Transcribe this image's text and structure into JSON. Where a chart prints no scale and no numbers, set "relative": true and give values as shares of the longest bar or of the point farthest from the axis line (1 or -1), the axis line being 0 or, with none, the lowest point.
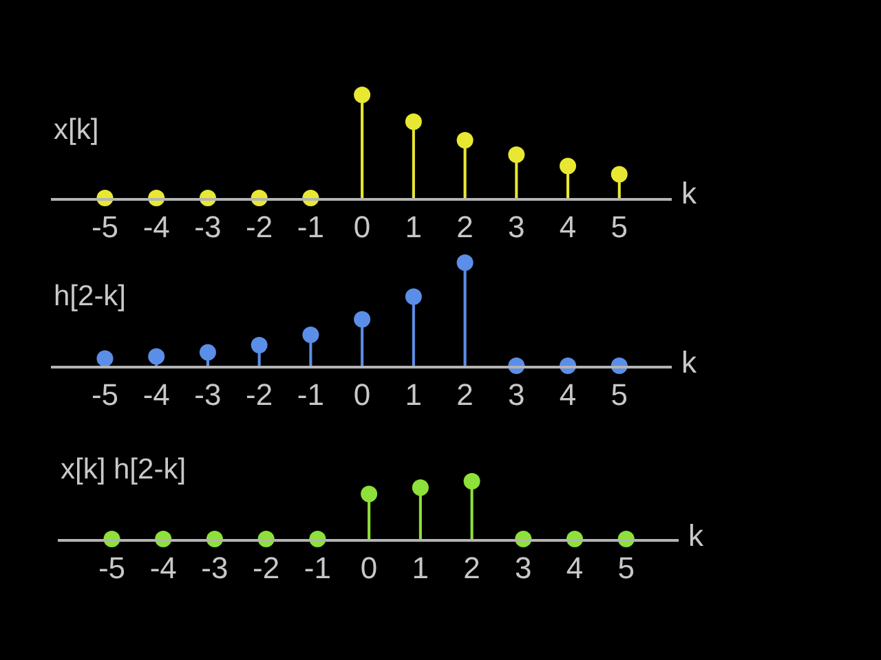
{
  "chart_data": [
    {
      "type": "lollipop",
      "title": "x[k]",
      "xlabel": "k",
      "categories": [
        "-5",
        "-4",
        "-3",
        "-2",
        "-1",
        "0",
        "1",
        "2",
        "3",
        "4",
        "5"
      ],
      "values": [
        0,
        0,
        0,
        0,
        0,
        1,
        0.74,
        0.56,
        0.42,
        0.31,
        0.23
      ],
      "color": "#e8e832",
      "relative": true
    },
    {
      "type": "lollipop",
      "title": "h[2-k]",
      "xlabel": "k",
      "categories": [
        "-5",
        "-4",
        "-3",
        "-2",
        "-1",
        "0",
        "1",
        "2",
        "3",
        "4",
        "5"
      ],
      "values": [
        0.07,
        0.09,
        0.13,
        0.2,
        0.3,
        0.45,
        0.67,
        1,
        0,
        0,
        0
      ],
      "color": "#5b8ee8",
      "relative": true
    },
    {
      "type": "lollipop",
      "title": "x[k] h[2-k]",
      "xlabel": "k",
      "categories": [
        "-5",
        "-4",
        "-3",
        "-2",
        "-1",
        "0",
        "1",
        "2",
        "3",
        "4",
        "5"
      ],
      "values": [
        0,
        0,
        0,
        0,
        0,
        0.78,
        0.89,
        1,
        0,
        0,
        0
      ],
      "color": "#8ee03a",
      "relative": true
    }
  ]
}
